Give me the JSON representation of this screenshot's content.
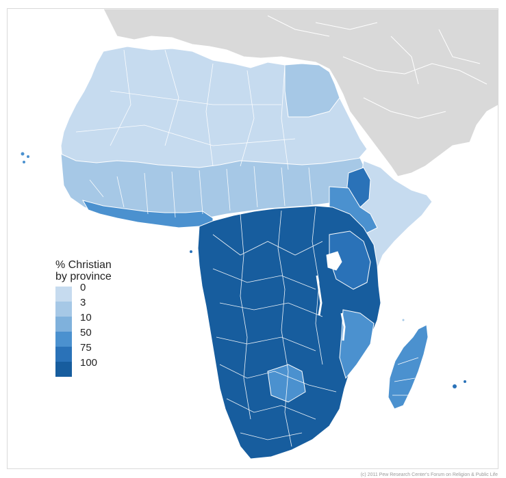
{
  "legend": {
    "title": "% Christian\nby province",
    "items": [
      {
        "label": "0",
        "color": "#c6dbef"
      },
      {
        "label": "3",
        "color": "#a6c8e6"
      },
      {
        "label": "10",
        "color": "#7fb1dc"
      },
      {
        "label": "50",
        "color": "#4b91cf"
      },
      {
        "label": "75",
        "color": "#2a72b8"
      },
      {
        "label": "100",
        "color": "#175d9e"
      }
    ]
  },
  "colors": {
    "ocean": "#ffffff",
    "other_land": "#d9d9d9",
    "borders": "#ffffff",
    "frame": "#d9d9d9"
  },
  "credit": "(c) 2011 Pew Research Center's Forum on Religion & Public Life"
}
